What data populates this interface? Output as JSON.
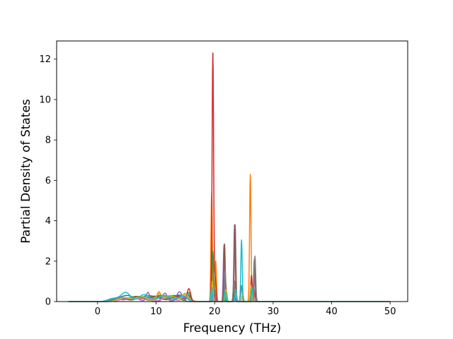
{
  "chart_data": {
    "type": "line",
    "title": "",
    "xlabel": "Frequency (THz)",
    "ylabel": "Partial Density of States",
    "xlim": [
      -7,
      53
    ],
    "ylim": [
      0,
      12.9
    ],
    "xticks": [
      0,
      10,
      20,
      30,
      40,
      50
    ],
    "yticks": [
      0,
      2,
      4,
      6,
      8,
      10,
      12
    ],
    "grid": false,
    "legend": "none",
    "x_start": -5,
    "x_end": 50,
    "series": [
      {
        "color": "#1f77b4",
        "peaks": [
          [
            2.5,
            0.12,
            0.8
          ],
          [
            5,
            0.3,
            1.2
          ],
          [
            8.5,
            0.28,
            1.0
          ],
          [
            11,
            0.3,
            1.0
          ],
          [
            14,
            0.32,
            0.8
          ],
          [
            15.5,
            0.3,
            0.3
          ],
          [
            19.6,
            0.6,
            0.15
          ],
          [
            21.7,
            0.4,
            0.15
          ],
          [
            23.5,
            0.5,
            0.12
          ],
          [
            26.4,
            0.5,
            0.12
          ]
        ]
      },
      {
        "color": "#ff7f0e",
        "peaks": [
          [
            3,
            0.15,
            0.8
          ],
          [
            6,
            0.22,
            1.0
          ],
          [
            9,
            0.2,
            1.0
          ],
          [
            10.5,
            0.38,
            0.3
          ],
          [
            12.5,
            0.3,
            1.0
          ],
          [
            15,
            0.35,
            0.7
          ],
          [
            19.5,
            5.4,
            0.12
          ],
          [
            20.2,
            2.0,
            0.12
          ],
          [
            21.9,
            0.9,
            0.12
          ],
          [
            23.3,
            1.1,
            0.12
          ],
          [
            26.1,
            6.3,
            0.12
          ],
          [
            26.8,
            0.6,
            0.12
          ]
        ]
      },
      {
        "color": "#2ca02c",
        "peaks": [
          [
            3.5,
            0.2,
            0.9
          ],
          [
            6.5,
            0.25,
            1.1
          ],
          [
            9.5,
            0.25,
            1.1
          ],
          [
            13,
            0.3,
            0.9
          ],
          [
            15.6,
            0.45,
            0.3
          ],
          [
            19.7,
            2.5,
            0.12
          ],
          [
            22,
            0.5,
            0.12
          ],
          [
            23.6,
            0.8,
            0.12
          ],
          [
            26.5,
            0.4,
            0.12
          ]
        ]
      },
      {
        "color": "#d62728",
        "peaks": [
          [
            4,
            0.2,
            1.0
          ],
          [
            7,
            0.25,
            1.0
          ],
          [
            10,
            0.25,
            1.0
          ],
          [
            13.5,
            0.3,
            0.9
          ],
          [
            15.6,
            0.62,
            0.3
          ],
          [
            19.7,
            12.3,
            0.13
          ],
          [
            20.1,
            1.2,
            0.12
          ],
          [
            21.6,
            0.7,
            0.12
          ],
          [
            23.5,
            1.0,
            0.12
          ],
          [
            26.3,
            1.3,
            0.12
          ],
          [
            27,
            0.5,
            0.12
          ]
        ]
      },
      {
        "color": "#9467bd",
        "peaks": [
          [
            3,
            0.15,
            0.8
          ],
          [
            6,
            0.2,
            1.0
          ],
          [
            8.6,
            0.45,
            0.3
          ],
          [
            11.5,
            0.42,
            0.4
          ],
          [
            14,
            0.48,
            0.5
          ],
          [
            19.8,
            0.8,
            0.12
          ],
          [
            21.6,
            2.8,
            0.12
          ],
          [
            23.4,
            3.8,
            0.12
          ],
          [
            26.9,
            1.5,
            0.12
          ]
        ]
      },
      {
        "color": "#8c564b",
        "peaks": [
          [
            4,
            0.2,
            0.9
          ],
          [
            7.5,
            0.22,
            1.0
          ],
          [
            11,
            0.3,
            1.0
          ],
          [
            13.5,
            0.25,
            0.7
          ],
          [
            15.3,
            0.3,
            0.4
          ],
          [
            19.9,
            0.5,
            0.12
          ],
          [
            21.7,
            2.85,
            0.12
          ],
          [
            23.5,
            3.8,
            0.12
          ],
          [
            26.8,
            2.1,
            0.12
          ]
        ]
      },
      {
        "color": "#e377c2",
        "peaks": [
          [
            5,
            0.18,
            1.0
          ],
          [
            8,
            0.2,
            1.0
          ],
          [
            12,
            0.22,
            1.0
          ],
          [
            15,
            0.28,
            0.5
          ],
          [
            19.8,
            0.3,
            0.12
          ],
          [
            23.7,
            0.4,
            0.12
          ],
          [
            26.6,
            0.5,
            0.12
          ]
        ]
      },
      {
        "color": "#7f7f7f",
        "peaks": [
          [
            3.8,
            0.18,
            0.9
          ],
          [
            7,
            0.22,
            1.0
          ],
          [
            11,
            0.28,
            1.0
          ],
          [
            14.5,
            0.3,
            0.7
          ],
          [
            20,
            0.6,
            0.12
          ],
          [
            21.8,
            1.5,
            0.12
          ],
          [
            23.3,
            1.0,
            0.12
          ],
          [
            24.6,
            0.8,
            0.12
          ],
          [
            26.9,
            2.25,
            0.12
          ]
        ]
      },
      {
        "color": "#bcbd22",
        "peaks": [
          [
            4.5,
            0.2,
            1.0
          ],
          [
            7.5,
            0.25,
            1.0
          ],
          [
            10.5,
            0.35,
            0.5
          ],
          [
            12.5,
            0.28,
            1.0
          ],
          [
            15,
            0.4,
            0.5
          ],
          [
            19.6,
            1.0,
            0.12
          ],
          [
            21.9,
            0.6,
            0.12
          ],
          [
            23.6,
            0.6,
            0.12
          ],
          [
            24.8,
            0.4,
            0.12
          ],
          [
            26.2,
            0.8,
            0.12
          ]
        ]
      },
      {
        "color": "#17becf",
        "peaks": [
          [
            2.8,
            0.15,
            0.8
          ],
          [
            4.8,
            0.45,
            0.8
          ],
          [
            8,
            0.35,
            0.9
          ],
          [
            11.5,
            0.3,
            1.0
          ],
          [
            14.5,
            0.25,
            0.8
          ],
          [
            19.5,
            0.7,
            0.12
          ],
          [
            21.8,
            0.5,
            0.12
          ],
          [
            23.6,
            0.6,
            0.12
          ],
          [
            24.6,
            3.05,
            0.12
          ],
          [
            26.4,
            0.7,
            0.12
          ]
        ]
      }
    ]
  }
}
